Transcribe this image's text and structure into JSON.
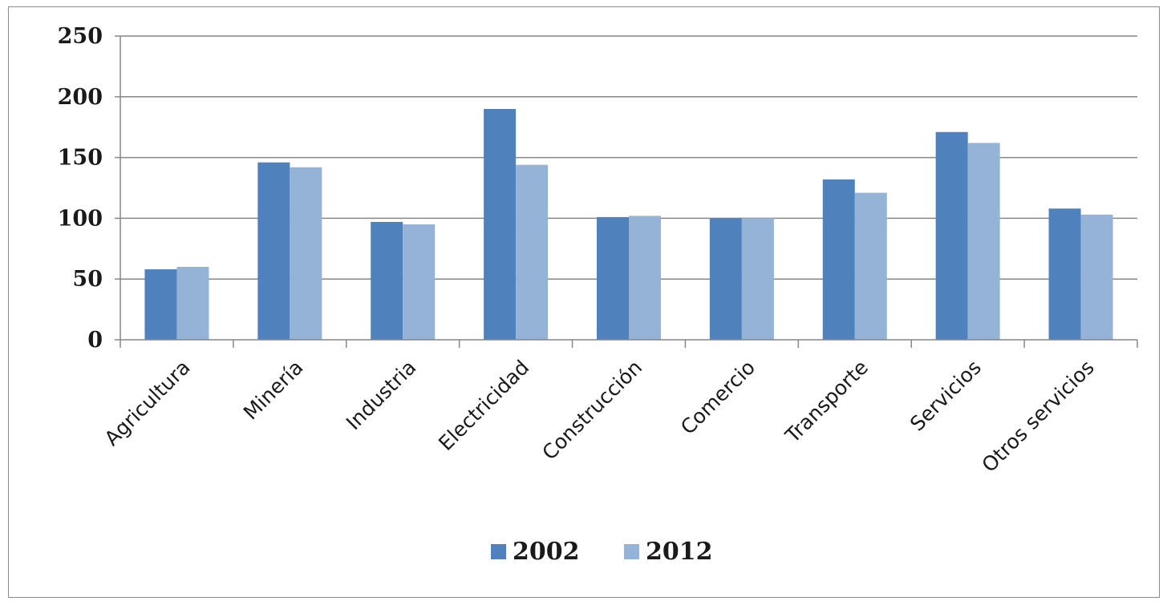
{
  "chart_data": {
    "type": "bar",
    "categories": [
      "Agricultura",
      "Minería",
      "Industria",
      "Electricidad",
      "Construcción",
      "Comercio",
      "Transporte",
      "Servicios",
      "Otros servicios"
    ],
    "series": [
      {
        "name": "2002",
        "color": "#4f81bd",
        "values": [
          58,
          146,
          97,
          190,
          101,
          100,
          132,
          171,
          108
        ]
      },
      {
        "name": "2012",
        "color": "#95b3d7",
        "values": [
          60,
          142,
          95,
          144,
          102,
          100,
          121,
          162,
          103
        ]
      }
    ],
    "yticks": [
      "0",
      "50",
      "100",
      "150",
      "200",
      "250"
    ],
    "ylim": [
      0,
      250
    ],
    "grid": true,
    "legend_position": "bottom",
    "title": "",
    "xlabel": "",
    "ylabel": ""
  }
}
